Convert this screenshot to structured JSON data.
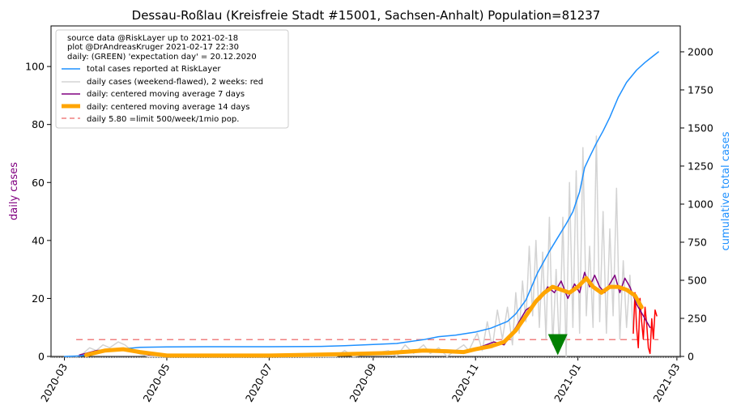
{
  "chart_data": {
    "type": "line",
    "title": "Dessau-Roßlau (Kreisfreie Stadt #15001, Sachsen-Anhalt) Population=81237",
    "ylabel_left": "daily cases",
    "ylabel_right": "cumulative total cases",
    "xlim": [
      "2020-02-22",
      "2021-03-03"
    ],
    "ylim_left": [
      0,
      114
    ],
    "ylim_right": [
      0,
      2170
    ],
    "x_ticks": [
      "2020-03",
      "2020-05",
      "2020-07",
      "2020-09",
      "2020-11",
      "2021-01",
      "2021-03"
    ],
    "yticks_left": [
      0,
      20,
      40,
      60,
      80,
      100
    ],
    "yticks_right": [
      0,
      250,
      500,
      750,
      1000,
      1250,
      1500,
      1750,
      2000
    ],
    "grid": false,
    "legend_position": "top-left",
    "info_lines": [
      "source data @RiskLayer up to 2021-02-18",
      "plot @DrAndreasKruger 2021-02-17 22:30",
      "daily: (GREEN) 'expectation day' = 20.12.2020"
    ],
    "legend": [
      {
        "label": "total cases reported at RiskLayer",
        "color": "#1e90ff",
        "style": "line"
      },
      {
        "label": "daily cases (weekend-flawed), 2 weeks: red",
        "color": "#d3d3d3",
        "style": "line"
      },
      {
        "label": "daily: centered moving average 7 days",
        "color": "#800080",
        "style": "line"
      },
      {
        "label": "daily: centered moving average 14 days",
        "color": "#ffa500",
        "style": "thick"
      },
      {
        "label": "daily 5.80 =limit 500/week/1mio pop.",
        "color": "#f08080",
        "style": "dashed"
      }
    ],
    "limit_line": {
      "value": 5.8,
      "from": "2020-03-08",
      "to": "2021-02-18"
    },
    "expectation_marker": {
      "date": "2020-12-20",
      "value": 3.5,
      "color": "#008000"
    },
    "series": [
      {
        "name": "total cases reported at RiskLayer",
        "axis": "right",
        "color": "#1e90ff",
        "points": [
          [
            "2020-03-01",
            0
          ],
          [
            "2020-03-10",
            3
          ],
          [
            "2020-03-20",
            20
          ],
          [
            "2020-04-01",
            45
          ],
          [
            "2020-04-15",
            60
          ],
          [
            "2020-05-01",
            63
          ],
          [
            "2020-06-01",
            64
          ],
          [
            "2020-07-01",
            64
          ],
          [
            "2020-08-01",
            66
          ],
          [
            "2020-08-15",
            70
          ],
          [
            "2020-09-01",
            78
          ],
          [
            "2020-09-15",
            85
          ],
          [
            "2020-10-01",
            110
          ],
          [
            "2020-10-10",
            130
          ],
          [
            "2020-10-20",
            140
          ],
          [
            "2020-11-01",
            160
          ],
          [
            "2020-11-10",
            185
          ],
          [
            "2020-11-20",
            230
          ],
          [
            "2020-11-25",
            280
          ],
          [
            "2020-12-01",
            370
          ],
          [
            "2020-12-08",
            550
          ],
          [
            "2020-12-15",
            690
          ],
          [
            "2020-12-20",
            780
          ],
          [
            "2020-12-25",
            870
          ],
          [
            "2020-12-29",
            950
          ],
          [
            "2021-01-02",
            1080
          ],
          [
            "2021-01-05",
            1240
          ],
          [
            "2021-01-08",
            1310
          ],
          [
            "2021-01-12",
            1400
          ],
          [
            "2021-01-16",
            1480
          ],
          [
            "2021-01-20",
            1570
          ],
          [
            "2021-01-25",
            1700
          ],
          [
            "2021-01-30",
            1800
          ],
          [
            "2021-02-05",
            1880
          ],
          [
            "2021-02-10",
            1930
          ],
          [
            "2021-02-14",
            1965
          ],
          [
            "2021-02-18",
            2000
          ]
        ]
      },
      {
        "name": "daily cases (weekend-flawed), 2 weeks: red",
        "axis": "left",
        "color": "#d3d3d3",
        "recent_color": "#ff0000",
        "points": [
          [
            "2020-03-08",
            0
          ],
          [
            "2020-03-12",
            1
          ],
          [
            "2020-03-16",
            3
          ],
          [
            "2020-03-20",
            2
          ],
          [
            "2020-03-24",
            4
          ],
          [
            "2020-03-28",
            3
          ],
          [
            "2020-04-02",
            5
          ],
          [
            "2020-04-06",
            4
          ],
          [
            "2020-04-10",
            2
          ],
          [
            "2020-04-14",
            1
          ],
          [
            "2020-04-20",
            0
          ],
          [
            "2020-05-01",
            0
          ],
          [
            "2020-06-01",
            0
          ],
          [
            "2020-07-01",
            0
          ],
          [
            "2020-08-10",
            0
          ],
          [
            "2020-08-15",
            2
          ],
          [
            "2020-08-20",
            0
          ],
          [
            "2020-09-01",
            1
          ],
          [
            "2020-09-10",
            2
          ],
          [
            "2020-09-15",
            0
          ],
          [
            "2020-09-20",
            4
          ],
          [
            "2020-09-25",
            1
          ],
          [
            "2020-10-01",
            4
          ],
          [
            "2020-10-05",
            1
          ],
          [
            "2020-10-10",
            3
          ],
          [
            "2020-10-15",
            0
          ],
          [
            "2020-10-20",
            2
          ],
          [
            "2020-10-25",
            4
          ],
          [
            "2020-10-28",
            2
          ],
          [
            "2020-11-02",
            8
          ],
          [
            "2020-11-05",
            2
          ],
          [
            "2020-11-08",
            12
          ],
          [
            "2020-11-11",
            3
          ],
          [
            "2020-11-14",
            16
          ],
          [
            "2020-11-17",
            6
          ],
          [
            "2020-11-20",
            17
          ],
          [
            "2020-11-23",
            4
          ],
          [
            "2020-11-25",
            22
          ],
          [
            "2020-11-27",
            8
          ],
          [
            "2020-11-29",
            26
          ],
          [
            "2020-12-01",
            12
          ],
          [
            "2020-12-03",
            38
          ],
          [
            "2020-12-05",
            14
          ],
          [
            "2020-12-07",
            40
          ],
          [
            "2020-12-09",
            10
          ],
          [
            "2020-12-11",
            36
          ],
          [
            "2020-12-13",
            6
          ],
          [
            "2020-12-15",
            48
          ],
          [
            "2020-12-17",
            4
          ],
          [
            "2020-12-19",
            30
          ],
          [
            "2020-12-21",
            2
          ],
          [
            "2020-12-23",
            48
          ],
          [
            "2020-12-25",
            0
          ],
          [
            "2020-12-27",
            60
          ],
          [
            "2020-12-29",
            10
          ],
          [
            "2020-12-31",
            64
          ],
          [
            "2021-01-02",
            8
          ],
          [
            "2021-01-04",
            72
          ],
          [
            "2021-01-06",
            14
          ],
          [
            "2021-01-08",
            38
          ],
          [
            "2021-01-10",
            10
          ],
          [
            "2021-01-12",
            76
          ],
          [
            "2021-01-14",
            12
          ],
          [
            "2021-01-16",
            50
          ],
          [
            "2021-01-18",
            8
          ],
          [
            "2021-01-20",
            44
          ],
          [
            "2021-01-22",
            14
          ],
          [
            "2021-01-24",
            58
          ],
          [
            "2021-01-26",
            6
          ],
          [
            "2021-01-28",
            33
          ],
          [
            "2021-01-30",
            10
          ],
          [
            "2021-02-01",
            28
          ],
          [
            "2021-02-03",
            8
          ]
        ]
      },
      {
        "name": "daily cases (last 2 weeks)",
        "axis": "left",
        "color": "#ff0000",
        "points": [
          [
            "2021-02-03",
            8
          ],
          [
            "2021-02-04",
            22
          ],
          [
            "2021-02-05",
            10
          ],
          [
            "2021-02-06",
            3
          ],
          [
            "2021-02-07",
            20
          ],
          [
            "2021-02-08",
            12
          ],
          [
            "2021-02-09",
            6
          ],
          [
            "2021-02-10",
            17
          ],
          [
            "2021-02-11",
            11
          ],
          [
            "2021-02-12",
            3
          ],
          [
            "2021-02-13",
            1
          ],
          [
            "2021-02-14",
            13
          ],
          [
            "2021-02-15",
            6
          ],
          [
            "2021-02-16",
            16
          ],
          [
            "2021-02-17",
            14
          ]
        ]
      },
      {
        "name": "daily: centered moving average 7 days",
        "axis": "left",
        "color": "#800080",
        "points": [
          [
            "2020-03-10",
            0.5
          ],
          [
            "2020-03-20",
            2
          ],
          [
            "2020-04-01",
            2.5
          ],
          [
            "2020-04-10",
            2
          ],
          [
            "2020-04-20",
            0.5
          ],
          [
            "2020-05-01",
            0.2
          ],
          [
            "2020-07-01",
            0.2
          ],
          [
            "2020-08-15",
            0.8
          ],
          [
            "2020-09-01",
            0.8
          ],
          [
            "2020-09-20",
            1.8
          ],
          [
            "2020-10-10",
            2.2
          ],
          [
            "2020-10-20",
            1.5
          ],
          [
            "2020-10-28",
            2
          ],
          [
            "2020-11-05",
            3.5
          ],
          [
            "2020-11-12",
            5
          ],
          [
            "2020-11-18",
            4
          ],
          [
            "2020-11-25",
            10
          ],
          [
            "2020-12-01",
            16
          ],
          [
            "2020-12-06",
            18
          ],
          [
            "2020-12-10",
            20
          ],
          [
            "2020-12-14",
            24
          ],
          [
            "2020-12-18",
            22
          ],
          [
            "2020-12-22",
            26
          ],
          [
            "2020-12-26",
            20
          ],
          [
            "2020-12-30",
            25
          ],
          [
            "2021-01-02",
            22
          ],
          [
            "2021-01-05",
            29
          ],
          [
            "2021-01-08",
            24
          ],
          [
            "2021-01-11",
            28
          ],
          [
            "2021-01-14",
            24
          ],
          [
            "2021-01-17",
            22
          ],
          [
            "2021-01-20",
            25
          ],
          [
            "2021-01-23",
            28
          ],
          [
            "2021-01-26",
            22
          ],
          [
            "2021-01-29",
            27
          ],
          [
            "2021-02-01",
            24
          ],
          [
            "2021-02-05",
            18
          ],
          [
            "2021-02-09",
            14
          ],
          [
            "2021-02-13",
            10
          ]
        ]
      },
      {
        "name": "daily: centered moving average 14 days",
        "axis": "left",
        "color": "#ffa500",
        "points": [
          [
            "2020-03-14",
            0.5
          ],
          [
            "2020-03-25",
            2
          ],
          [
            "2020-04-05",
            2.5
          ],
          [
            "2020-04-15",
            1.5
          ],
          [
            "2020-05-01",
            0.3
          ],
          [
            "2020-07-01",
            0.3
          ],
          [
            "2020-08-15",
            0.8
          ],
          [
            "2020-09-10",
            1.2
          ],
          [
            "2020-10-01",
            2
          ],
          [
            "2020-10-15",
            1.8
          ],
          [
            "2020-10-25",
            1.5
          ],
          [
            "2020-11-01",
            2.5
          ],
          [
            "2020-11-10",
            3.5
          ],
          [
            "2020-11-18",
            5
          ],
          [
            "2020-11-25",
            9
          ],
          [
            "2020-12-01",
            14
          ],
          [
            "2020-12-07",
            19
          ],
          [
            "2020-12-12",
            22
          ],
          [
            "2020-12-17",
            24
          ],
          [
            "2020-12-22",
            23
          ],
          [
            "2020-12-27",
            22
          ],
          [
            "2021-01-01",
            24
          ],
          [
            "2021-01-06",
            27
          ],
          [
            "2021-01-10",
            24
          ],
          [
            "2021-01-15",
            22
          ],
          [
            "2021-01-20",
            24
          ],
          [
            "2021-01-25",
            24
          ],
          [
            "2021-01-30",
            23
          ],
          [
            "2021-02-04",
            21
          ],
          [
            "2021-02-08",
            17
          ]
        ]
      }
    ]
  }
}
